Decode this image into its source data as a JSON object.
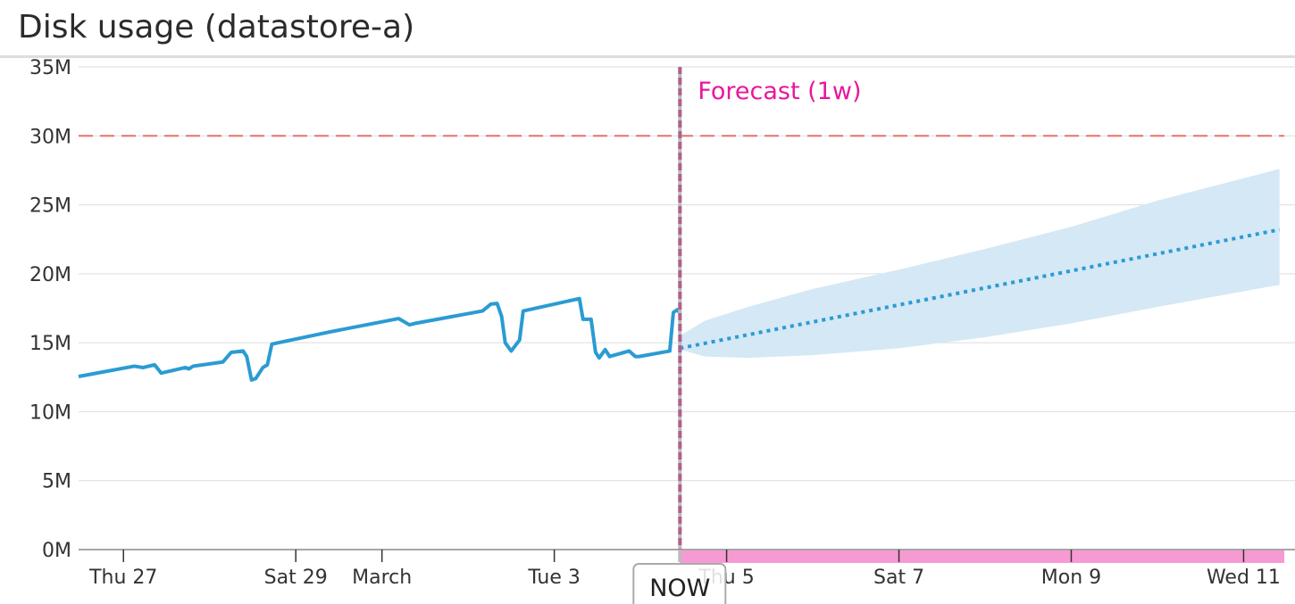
{
  "title": "Disk usage (datastore-a)",
  "chart_data": {
    "type": "line",
    "title": "Disk usage (datastore-a)",
    "xlabel": "",
    "ylabel": "",
    "ylim": [
      0,
      35
    ],
    "y_ticks": [
      "0M",
      "5M",
      "10M",
      "15M",
      "20M",
      "25M",
      "30M",
      "35M"
    ],
    "y_tick_values": [
      0,
      5,
      10,
      15,
      20,
      25,
      30,
      35
    ],
    "x_range": [
      "2020-02-26T11:30",
      "2020-03-11T11:20"
    ],
    "x_ticks": [
      {
        "label": "Thu 27",
        "date": "2020-02-27T00:00"
      },
      {
        "label": "Sat 29",
        "date": "2020-02-29T00:00"
      },
      {
        "label": "March",
        "date": "2020-03-01T00:00"
      },
      {
        "label": "Tue 3",
        "date": "2020-03-03T00:00"
      },
      {
        "label": "Thu 5",
        "date": "2020-03-05T00:00"
      },
      {
        "label": "Sat 7",
        "date": "2020-03-07T00:00"
      },
      {
        "label": "Mon 9",
        "date": "2020-03-09T00:00"
      },
      {
        "label": "Wed 11",
        "date": "2020-03-11T00:00"
      }
    ],
    "grid": true,
    "units": "M",
    "threshold": {
      "value": 30,
      "color": "#e8706f"
    },
    "now": {
      "date": "2020-03-04T11:00",
      "label": "NOW"
    },
    "forecast_label": "Forecast (1w)",
    "colors": {
      "series": "#2b9bd3",
      "band": "#d4e8f5",
      "forecast_label": "#e8179b",
      "now_line": "#b0608f",
      "forecast_bar": "#f79ad3"
    },
    "series": [
      {
        "style": "solid",
        "points": [
          [
            "2020-02-26T11:30",
            12.55
          ],
          [
            "2020-02-27T03:00",
            13.3
          ],
          [
            "2020-02-27T05:30",
            13.2
          ],
          [
            "2020-02-27T08:40",
            13.4
          ],
          [
            "2020-02-27T10:30",
            12.8
          ],
          [
            "2020-02-27T17:15",
            13.2
          ],
          [
            "2020-02-27T18:10",
            13.1
          ],
          [
            "2020-02-27T19:25",
            13.3
          ],
          [
            "2020-02-28T03:40",
            13.6
          ],
          [
            "2020-02-28T06:00",
            14.3
          ],
          [
            "2020-02-28T09:20",
            14.4
          ],
          [
            "2020-02-28T10:20",
            14.0
          ],
          [
            "2020-02-28T11:40",
            12.3
          ],
          [
            "2020-02-28T12:50",
            12.4
          ],
          [
            "2020-02-28T14:50",
            13.2
          ],
          [
            "2020-02-28T16:05",
            13.4
          ],
          [
            "2020-02-28T17:20",
            14.9
          ],
          [
            "2020-02-29T09:45",
            15.8
          ],
          [
            "2020-03-01T04:40",
            16.75
          ],
          [
            "2020-03-01T07:40",
            16.3
          ],
          [
            "2020-03-01T09:10",
            16.4
          ],
          [
            "2020-03-02T04:00",
            17.3
          ],
          [
            "2020-03-02T06:20",
            17.8
          ],
          [
            "2020-03-02T08:05",
            17.85
          ],
          [
            "2020-03-02T09:20",
            16.9
          ],
          [
            "2020-03-02T10:20",
            15.0
          ],
          [
            "2020-03-02T12:00",
            14.4
          ],
          [
            "2020-03-02T14:20",
            15.2
          ],
          [
            "2020-03-02T15:20",
            17.3
          ],
          [
            "2020-03-03T07:00",
            18.2
          ],
          [
            "2020-03-03T08:00",
            16.7
          ],
          [
            "2020-03-03T10:15",
            16.7
          ],
          [
            "2020-03-03T11:30",
            14.3
          ],
          [
            "2020-03-03T12:30",
            13.9
          ],
          [
            "2020-03-03T14:10",
            14.5
          ],
          [
            "2020-03-03T15:25",
            14.0
          ],
          [
            "2020-03-03T20:50",
            14.4
          ],
          [
            "2020-03-03T22:35",
            14.0
          ],
          [
            "2020-03-03T23:35",
            14.0
          ],
          [
            "2020-03-04T08:10",
            14.4
          ],
          [
            "2020-03-04T09:10",
            17.2
          ],
          [
            "2020-03-04T10:20",
            17.4
          ],
          [
            "2020-03-04T10:50",
            17.2
          ]
        ]
      },
      {
        "style": "dotted",
        "points": [
          [
            "2020-03-04T11:00",
            14.6
          ],
          [
            "2020-03-11T10:00",
            23.2
          ]
        ]
      }
    ],
    "forecast_band": [
      [
        "2020-03-04T11:00",
        14.5,
        15.5
      ],
      [
        "2020-03-04T18:00",
        14.0,
        16.6
      ],
      [
        "2020-03-05T06:00",
        13.9,
        17.6
      ],
      [
        "2020-03-06T00:00",
        14.1,
        18.9
      ],
      [
        "2020-03-07T00:00",
        14.6,
        20.3
      ],
      [
        "2020-03-08T00:00",
        15.4,
        21.8
      ],
      [
        "2020-03-09T00:00",
        16.4,
        23.4
      ],
      [
        "2020-03-10T00:00",
        17.6,
        25.3
      ],
      [
        "2020-03-11T10:00",
        19.2,
        27.6
      ]
    ]
  }
}
